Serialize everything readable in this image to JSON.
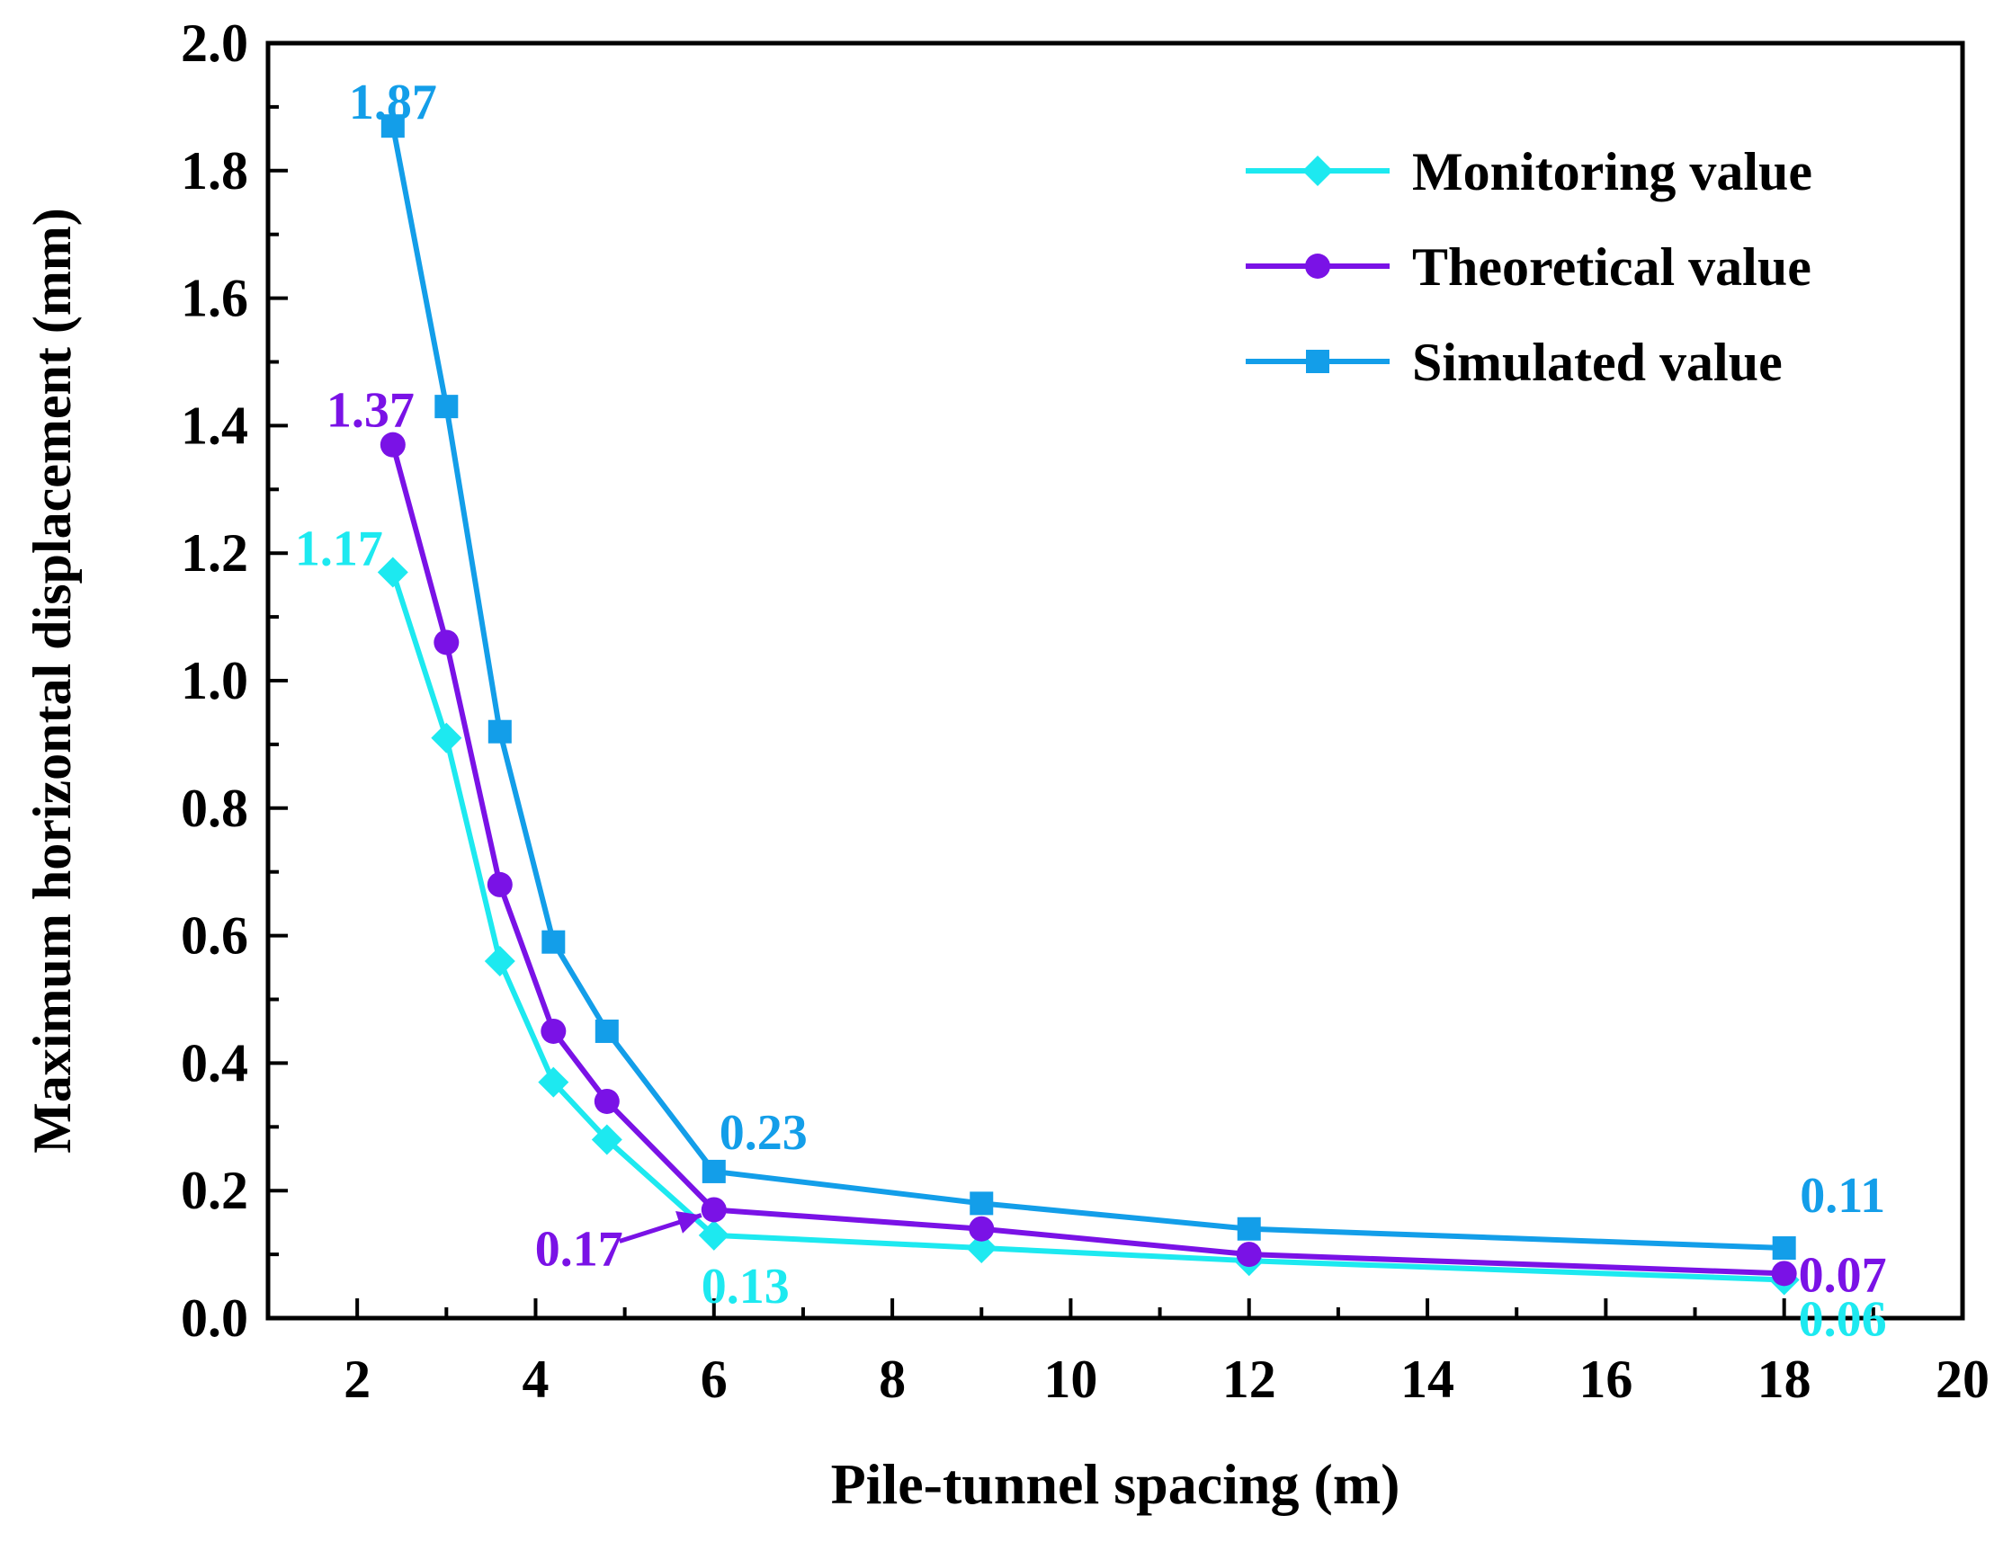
{
  "chart_data": {
    "type": "line",
    "title": "",
    "xlabel": "Pile-tunnel spacing (m)",
    "ylabel": "Maximum horizontal displacement  (mm)",
    "xlim": [
      1,
      20
    ],
    "ylim": [
      0,
      2.0
    ],
    "x_ticks": [
      2,
      4,
      6,
      8,
      10,
      12,
      14,
      16,
      18,
      20
    ],
    "y_ticks": [
      0.0,
      0.2,
      0.4,
      0.6,
      0.8,
      1.0,
      1.2,
      1.4,
      1.6,
      1.8,
      2.0
    ],
    "x_tick_labels": [
      "2",
      "4",
      "6",
      "8",
      "10",
      "12",
      "14",
      "16",
      "18",
      "20"
    ],
    "y_tick_labels": [
      "0.0",
      "0.2",
      "0.4",
      "0.6",
      "0.8",
      "1.0",
      "1.2",
      "1.4",
      "1.6",
      "1.8",
      "2.0"
    ],
    "grid": false,
    "legend_position": "top-right",
    "x": [
      2.4,
      3.0,
      3.6,
      4.2,
      4.8,
      6,
      9,
      12,
      18
    ],
    "series": [
      {
        "name": "Monitoring value",
        "marker": "diamond",
        "color": "#1de9f0",
        "values": [
          1.17,
          0.91,
          0.56,
          0.37,
          0.28,
          0.13,
          0.11,
          0.09,
          0.06
        ]
      },
      {
        "name": "Theoretical value",
        "marker": "circle",
        "color": "#7a12e6",
        "values": [
          1.37,
          1.06,
          0.68,
          0.45,
          0.34,
          0.17,
          0.14,
          0.1,
          0.07
        ]
      },
      {
        "name": "Simulated value",
        "marker": "square",
        "color": "#139ee9",
        "values": [
          1.87,
          1.43,
          0.92,
          0.59,
          0.45,
          0.23,
          0.18,
          0.14,
          0.11
        ]
      }
    ],
    "annotations": [
      {
        "text": "1.87",
        "series": "Simulated value",
        "x": 2.4,
        "y": 1.87
      },
      {
        "text": "1.37",
        "series": "Theoretical value",
        "x": 2.4,
        "y": 1.37
      },
      {
        "text": "1.17",
        "series": "Monitoring value",
        "x": 2.4,
        "y": 1.17
      },
      {
        "text": "0.23",
        "series": "Simulated value",
        "x": 6,
        "y": 0.23
      },
      {
        "text": "0.17",
        "series": "Theoretical value",
        "x": 6,
        "y": 0.17,
        "arrow": true
      },
      {
        "text": "0.13",
        "series": "Monitoring value",
        "x": 6,
        "y": 0.13
      },
      {
        "text": "0.11",
        "series": "Simulated value",
        "x": 18,
        "y": 0.11
      },
      {
        "text": "0.07",
        "series": "Theoretical value",
        "x": 18,
        "y": 0.07
      },
      {
        "text": "0.06",
        "series": "Monitoring value",
        "x": 18,
        "y": 0.06
      }
    ]
  }
}
